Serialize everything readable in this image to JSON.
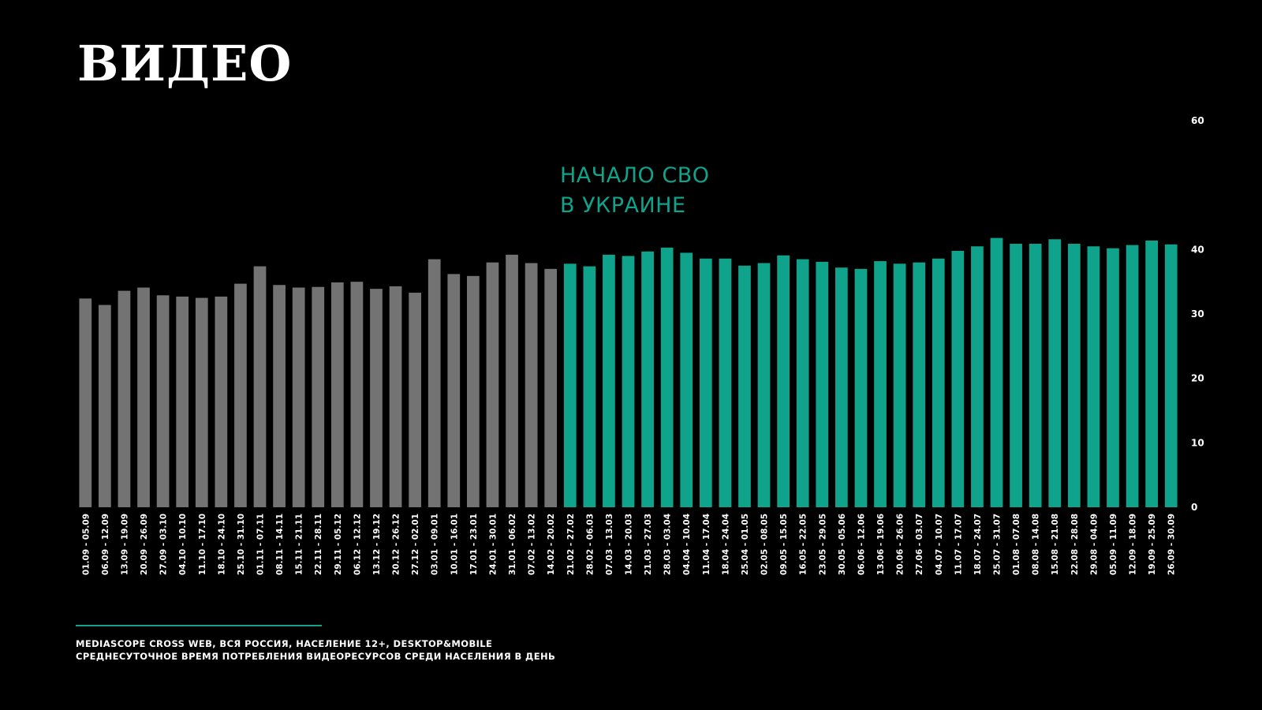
{
  "title": "ВИДЕО",
  "annotation": {
    "line1": "НАЧАЛО СВО",
    "line2": "В УКРАИНЕ"
  },
  "footer": {
    "line1": "MEDIASCOPE CROSS WEB, ВСЯ РОССИЯ, НАСЕЛЕНИЕ 12+, DESKTOP&MOBILE",
    "line2": "СРЕДНЕСУТОЧНОЕ ВРЕМЯ ПОТРЕБЛЕНИЯ ВИДЕОРЕСУРСОВ СРЕДИ НАСЕЛЕНИЯ В ДЕНЬ"
  },
  "colors": {
    "background": "#000000",
    "before": "#737373",
    "after": "#0fa38c",
    "text": "#ffffff"
  },
  "chart_data": {
    "type": "bar",
    "ylim": [
      0,
      60
    ],
    "yticks": [
      0,
      10,
      20,
      30,
      40,
      60
    ],
    "grid": false,
    "highlight_start_index": 25,
    "categories": [
      "01.09 - 05.09",
      "06.09 - 12.09",
      "13.09 - 19.09",
      "20.09 - 26.09",
      "27.09 - 03.10",
      "04.10 - 10.10",
      "11.10 - 17.10",
      "18.10 - 24.10",
      "25.10 - 31.10",
      "01.11 - 07.11",
      "08.11 - 14.11",
      "15.11 - 21.11",
      "22.11 - 28.11",
      "29.11 - 05.12",
      "06.12 - 12.12",
      "13.12 - 19.12",
      "20.12 - 26.12",
      "27.12 - 02.01",
      "03.01 - 09.01",
      "10.01 - 16.01",
      "17.01 - 23.01",
      "24.01 - 30.01",
      "31.01 - 06.02",
      "07.02 - 13.02",
      "14.02 - 20.02",
      "21.02 - 27.02",
      "28.02 - 06.03",
      "07.03 - 13.03",
      "14.03 - 20.03",
      "21.03 - 27.03",
      "28.03 - 03.04",
      "04.04 - 10.04",
      "11.04 - 17.04",
      "18.04 - 24.04",
      "25.04 - 01.05",
      "02.05 - 08.05",
      "09.05 - 15.05",
      "16.05 - 22.05",
      "23.05 - 29.05",
      "30.05 - 05.06",
      "06.06 - 12.06",
      "13.06 - 19.06",
      "20.06 - 26.06",
      "27.06 - 03.07",
      "04.07 - 10.07",
      "11.07 - 17.07",
      "18.07 - 24.07",
      "25.07 - 31.07",
      "01.08 - 07.08",
      "08.08 - 14.08",
      "15.08 - 21.08",
      "22.08 - 28.08",
      "29.08 - 04.09",
      "05.09 - 11.09",
      "12.09 - 18.09",
      "19.09 - 25.09",
      "26.09 - 30.09"
    ],
    "values": [
      32.4,
      31.4,
      33.6,
      34.1,
      32.9,
      32.7,
      32.5,
      32.7,
      34.7,
      37.4,
      34.5,
      34.1,
      34.2,
      34.9,
      35.0,
      33.9,
      34.3,
      33.3,
      38.5,
      36.2,
      35.9,
      38.0,
      39.2,
      37.9,
      37.0,
      37.8,
      37.4,
      39.2,
      39.0,
      39.7,
      40.3,
      39.5,
      38.6,
      38.6,
      37.5,
      37.9,
      39.1,
      38.5,
      38.1,
      37.2,
      37.0,
      38.2,
      37.8,
      38.0,
      38.6,
      39.8,
      40.5,
      41.8,
      40.9,
      40.9,
      41.6,
      40.9,
      40.5,
      40.2,
      40.7,
      41.4,
      40.8
    ]
  }
}
